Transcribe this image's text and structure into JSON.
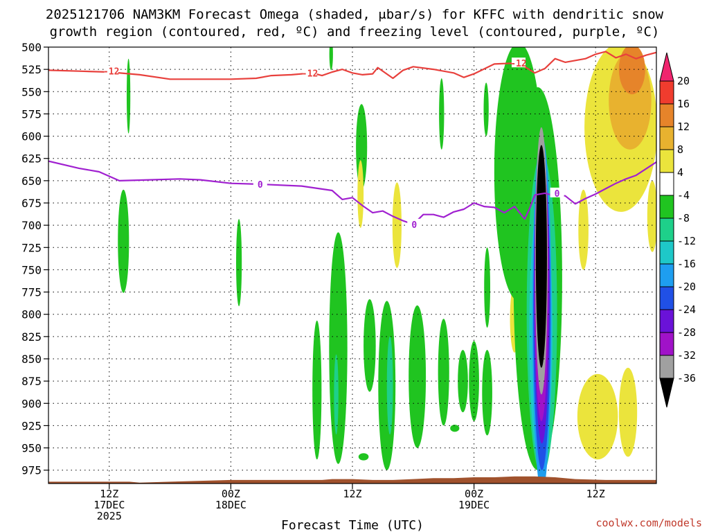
{
  "chart_data": {
    "type": "heatmap",
    "title_line1": "2025121706 NAM3KM Forecast Omega (shaded, μbar/s) for KFFC with dendritic snow",
    "title_line2": "growth region (contoured, red, ºC) and freezing level (contoured, purple, ºC)",
    "xlabel": "Forecast Time (UTC)",
    "credit": "coolwx.com/models",
    "y_axis": {
      "units": "hPa",
      "reversed": true,
      "range": [
        500,
        990
      ],
      "ticks": [
        500,
        525,
        550,
        575,
        600,
        625,
        650,
        675,
        700,
        725,
        750,
        775,
        800,
        825,
        850,
        875,
        900,
        925,
        950,
        975
      ]
    },
    "x_axis": {
      "units": "forecast hour",
      "range": [
        0,
        60
      ],
      "ticks": [
        {
          "hour": 6,
          "lines": [
            "12Z",
            "17DEC",
            "2025"
          ]
        },
        {
          "hour": 18,
          "lines": [
            "00Z",
            "18DEC"
          ]
        },
        {
          "hour": 30,
          "lines": [
            "12Z"
          ]
        },
        {
          "hour": 42,
          "lines": [
            "00Z",
            "19DEC"
          ]
        },
        {
          "hour": 54,
          "lines": [
            "12Z"
          ]
        }
      ]
    },
    "grid": true,
    "colorbar": {
      "ticks": [
        "20",
        "16",
        "12",
        "8",
        "4",
        "-4",
        "-8",
        "-12",
        "-16",
        "-20",
        "-24",
        "-28",
        "-32",
        "-36"
      ],
      "colors": [
        "#f0256e",
        "#f03c2e",
        "#e6842a",
        "#e8b22f",
        "#ebe43c",
        "#ffffff",
        "#20c420",
        "#1ed08a",
        "#1ec8c8",
        "#1e9ef0",
        "#2050e6",
        "#6a12d8",
        "#a012c8",
        "#a0a0a0",
        "#000000"
      ]
    },
    "contours": [
      {
        "name": "-12",
        "color": "#e8403c",
        "labels": [
          {
            "x": 6.2,
            "p": 527
          },
          {
            "x": 25.8,
            "p": 529
          },
          {
            "x": 46.4,
            "p": 518
          }
        ],
        "points": [
          [
            0,
            526
          ],
          [
            3,
            527
          ],
          [
            6,
            528
          ],
          [
            9,
            531
          ],
          [
            12,
            536
          ],
          [
            15,
            536
          ],
          [
            18,
            536
          ],
          [
            20.5,
            535
          ],
          [
            22,
            532
          ],
          [
            24,
            531
          ],
          [
            26,
            529
          ],
          [
            27,
            532
          ],
          [
            28,
            528
          ],
          [
            29,
            525
          ],
          [
            30,
            529
          ],
          [
            31,
            531
          ],
          [
            32,
            530
          ],
          [
            32.5,
            523
          ],
          [
            33.5,
            531
          ],
          [
            34,
            535
          ],
          [
            35,
            526
          ],
          [
            36,
            522
          ],
          [
            38,
            525
          ],
          [
            40,
            529
          ],
          [
            41,
            534
          ],
          [
            42,
            530
          ],
          [
            44,
            519
          ],
          [
            46,
            518
          ],
          [
            47,
            522
          ],
          [
            48,
            529
          ],
          [
            49,
            524
          ],
          [
            50,
            513
          ],
          [
            51,
            517
          ],
          [
            52,
            515
          ],
          [
            53,
            513
          ],
          [
            54,
            508
          ],
          [
            55,
            505
          ],
          [
            56,
            512
          ],
          [
            57,
            508
          ],
          [
            58,
            513
          ],
          [
            59,
            509
          ],
          [
            60,
            506
          ]
        ]
      },
      {
        "name": "0",
        "color": "#a020d0",
        "labels": [
          {
            "x": 20.9,
            "p": 654
          },
          {
            "x": 36.1,
            "p": 699
          },
          {
            "x": 50.2,
            "p": 664
          }
        ],
        "points": [
          [
            0,
            628
          ],
          [
            3,
            636
          ],
          [
            5,
            640
          ],
          [
            7,
            650
          ],
          [
            10,
            649
          ],
          [
            13,
            648
          ],
          [
            15,
            649
          ],
          [
            18,
            653
          ],
          [
            21,
            654
          ],
          [
            25,
            656
          ],
          [
            28,
            661
          ],
          [
            29,
            671
          ],
          [
            30,
            669
          ],
          [
            31,
            678
          ],
          [
            32,
            686
          ],
          [
            33,
            684
          ],
          [
            34,
            690
          ],
          [
            35,
            695
          ],
          [
            36,
            699
          ],
          [
            37,
            688
          ],
          [
            38,
            688
          ],
          [
            39,
            691
          ],
          [
            40,
            685
          ],
          [
            41,
            682
          ],
          [
            42,
            675
          ],
          [
            43,
            679
          ],
          [
            44,
            680
          ],
          [
            45,
            686
          ],
          [
            46,
            679
          ],
          [
            47,
            693
          ],
          [
            47.5,
            681
          ],
          [
            48,
            666
          ],
          [
            49,
            664
          ],
          [
            50,
            667
          ],
          [
            51,
            667
          ],
          [
            52,
            676
          ],
          [
            53,
            670
          ],
          [
            54,
            665
          ],
          [
            55,
            659
          ],
          [
            56,
            653
          ],
          [
            57,
            648
          ],
          [
            58,
            644
          ],
          [
            60,
            629
          ]
        ]
      }
    ],
    "shaded_regions": [
      {
        "value": "-4",
        "kind": "ellipse",
        "cx": 7.9,
        "cy": 555,
        "rx": 0.18,
        "ry": 42
      },
      {
        "value": "-4",
        "kind": "ellipse",
        "cx": 7.4,
        "cy": 718,
        "rx": 0.55,
        "ry": 58
      },
      {
        "value": "-4",
        "kind": "ellipse",
        "cx": 18.8,
        "cy": 742,
        "rx": 0.28,
        "ry": 49
      },
      {
        "value": "-4",
        "kind": "ellipse",
        "cx": 27.9,
        "cy": 508,
        "rx": 0.18,
        "ry": 18
      },
      {
        "value": "-4",
        "kind": "ellipse",
        "cx": 30.9,
        "cy": 612,
        "rx": 0.55,
        "ry": 48
      },
      {
        "value": "-4",
        "kind": "ellipse",
        "cx": 38.8,
        "cy": 575,
        "rx": 0.25,
        "ry": 40
      },
      {
        "value": "-4",
        "kind": "ellipse",
        "cx": 43.2,
        "cy": 570,
        "rx": 0.25,
        "ry": 30
      },
      {
        "value": "-4",
        "kind": "ellipse",
        "cx": 26.5,
        "cy": 885,
        "rx": 0.45,
        "ry": 78
      },
      {
        "value": "-4",
        "kind": "ellipse",
        "cx": 28.6,
        "cy": 838,
        "rx": 0.9,
        "ry": 130
      },
      {
        "value": "-8",
        "kind": "ellipse",
        "cx": 28.4,
        "cy": 890,
        "rx": 0.22,
        "ry": 45
      },
      {
        "value": "-4",
        "kind": "ellipse",
        "cx": 31.7,
        "cy": 835,
        "rx": 0.6,
        "ry": 52
      },
      {
        "value": "-4",
        "kind": "ellipse",
        "cx": 33.4,
        "cy": 880,
        "rx": 0.85,
        "ry": 95
      },
      {
        "value": "-8",
        "kind": "ellipse",
        "cx": 33.7,
        "cy": 880,
        "rx": 0.3,
        "ry": 55
      },
      {
        "value": "-4",
        "kind": "ellipse",
        "cx": 36.4,
        "cy": 870,
        "rx": 0.85,
        "ry": 80
      },
      {
        "value": "-4",
        "kind": "ellipse",
        "cx": 39.0,
        "cy": 865,
        "rx": 0.55,
        "ry": 60
      },
      {
        "value": "-4",
        "kind": "ellipse",
        "cx": 40.9,
        "cy": 875,
        "rx": 0.5,
        "ry": 35
      },
      {
        "value": "-4",
        "kind": "ellipse",
        "cx": 42.0,
        "cy": 875,
        "rx": 0.5,
        "ry": 45
      },
      {
        "value": "-4",
        "kind": "ellipse",
        "cx": 43.3,
        "cy": 888,
        "rx": 0.5,
        "ry": 48
      },
      {
        "value": "-4",
        "kind": "ellipse",
        "cx": 43.3,
        "cy": 770,
        "rx": 0.3,
        "ry": 45
      },
      {
        "value": "-4",
        "kind": "ellipse",
        "cx": 31.1,
        "cy": 960,
        "rx": 0.5,
        "ry": 4
      },
      {
        "value": "-4",
        "kind": "ellipse",
        "cx": 40.1,
        "cy": 928,
        "rx": 0.45,
        "ry": 4
      },
      {
        "value": "4",
        "kind": "ellipse",
        "cx": 30.8,
        "cy": 665,
        "rx": 0.3,
        "ry": 38
      },
      {
        "value": "4",
        "kind": "ellipse",
        "cx": 34.4,
        "cy": 700,
        "rx": 0.45,
        "ry": 48
      },
      {
        "value": "4",
        "kind": "ellipse",
        "cx": 46.0,
        "cy": 805,
        "rx": 0.45,
        "ry": 38
      },
      {
        "value": "4",
        "kind": "ellipse",
        "cx": 52.8,
        "cy": 705,
        "rx": 0.5,
        "ry": 45
      },
      {
        "value": "4",
        "kind": "ellipse",
        "cx": 54.2,
        "cy": 915,
        "rx": 2.0,
        "ry": 48
      },
      {
        "value": "4",
        "kind": "ellipse",
        "cx": 57.2,
        "cy": 910,
        "rx": 0.9,
        "ry": 50
      },
      {
        "value": "4",
        "kind": "ellipse",
        "cx": 59.6,
        "cy": 690,
        "rx": 0.5,
        "ry": 40
      },
      {
        "value": "4",
        "kind": "ellipse",
        "cx": 56.5,
        "cy": 590,
        "rx": 3.6,
        "ry": 95
      },
      {
        "value": "8",
        "kind": "ellipse",
        "cx": 57.4,
        "cy": 560,
        "rx": 2.1,
        "ry": 55
      },
      {
        "value": "12",
        "kind": "ellipse",
        "cx": 57.6,
        "cy": 525,
        "rx": 1.3,
        "ry": 28
      },
      {
        "value": "-4",
        "kind": "ellipse",
        "cx": 46.4,
        "cy": 640,
        "rx": 2.4,
        "ry": 145
      },
      {
        "value": "-4",
        "kind": "ellipse",
        "cx": 48.3,
        "cy": 760,
        "rx": 2.4,
        "ry": 215
      },
      {
        "value": "-8",
        "kind": "ellipse",
        "cx": 48.7,
        "cy": 800,
        "rx": 1.5,
        "ry": 180
      },
      {
        "value": "-12",
        "kind": "ellipse",
        "cx": 48.6,
        "cy": 820,
        "rx": 1.15,
        "ry": 150
      },
      {
        "value": "-16",
        "kind": "ellipse",
        "cx": 48.7,
        "cy": 800,
        "rx": 0.95,
        "ry": 200
      },
      {
        "value": "-20",
        "kind": "ellipse",
        "cx": 48.7,
        "cy": 800,
        "rx": 0.85,
        "ry": 175
      },
      {
        "value": "-24",
        "kind": "ellipse",
        "cx": 48.7,
        "cy": 780,
        "rx": 0.75,
        "ry": 165
      },
      {
        "value": "-28",
        "kind": "ellipse",
        "cx": 48.65,
        "cy": 760,
        "rx": 0.7,
        "ry": 160
      },
      {
        "value": "-32",
        "kind": "ellipse",
        "cx": 48.65,
        "cy": 740,
        "rx": 0.62,
        "ry": 150
      },
      {
        "value": "-36",
        "kind": "ellipse",
        "cx": 48.65,
        "cy": 735,
        "rx": 0.55,
        "ry": 125
      }
    ],
    "terrain": {
      "color": "#a0522d",
      "points": [
        [
          0,
          988
        ],
        [
          8,
          988
        ],
        [
          9,
          989
        ],
        [
          12,
          988
        ],
        [
          15,
          987
        ],
        [
          18,
          986
        ],
        [
          21,
          986
        ],
        [
          24,
          986
        ],
        [
          27,
          986
        ],
        [
          28,
          985
        ],
        [
          30,
          985
        ],
        [
          32,
          986
        ],
        [
          34,
          986
        ],
        [
          36,
          985
        ],
        [
          38,
          984
        ],
        [
          40,
          984
        ],
        [
          42,
          983
        ],
        [
          44,
          983
        ],
        [
          46,
          982
        ],
        [
          48,
          982
        ],
        [
          50,
          983
        ],
        [
          52,
          985
        ],
        [
          55,
          986
        ],
        [
          58,
          986
        ],
        [
          60,
          986
        ]
      ]
    }
  }
}
